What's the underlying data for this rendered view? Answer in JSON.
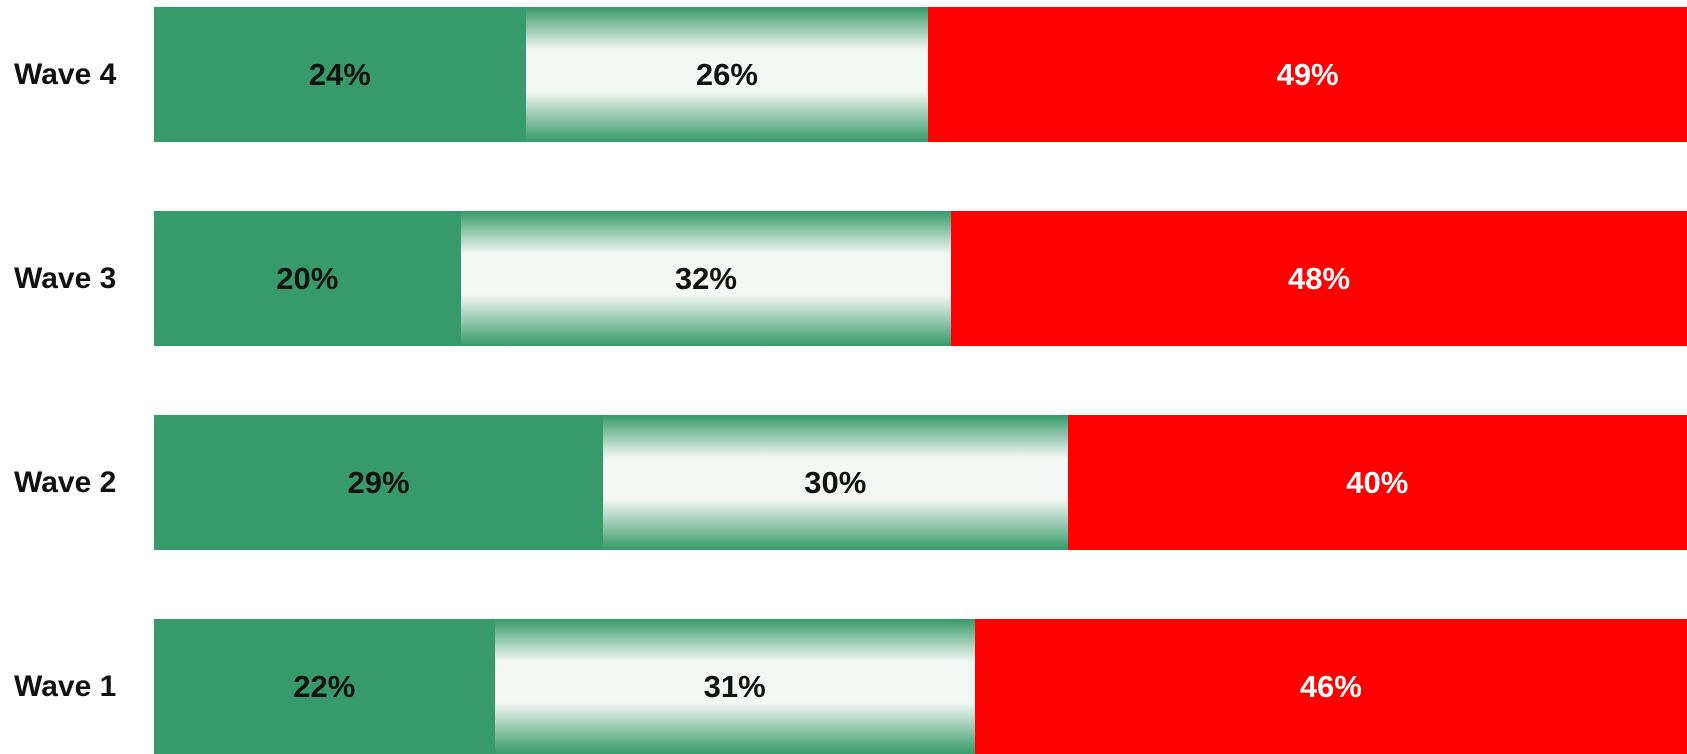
{
  "chart_data": {
    "type": "bar",
    "orientation": "horizontal",
    "stacked": true,
    "categories": [
      "Wave 4",
      "Wave 3",
      "Wave 2",
      "Wave 1"
    ],
    "series": [
      {
        "values": [
          24,
          20,
          29,
          22
        ],
        "labels": [
          "24%",
          "20%",
          "29%",
          "22%"
        ],
        "color": "#379a6a"
      },
      {
        "values": [
          26,
          32,
          30,
          31
        ],
        "labels": [
          "26%",
          "32%",
          "30%",
          "31%"
        ],
        "color": "#f4f8f5"
      },
      {
        "values": [
          49,
          48,
          40,
          46
        ],
        "labels": [
          "49%",
          "48%",
          "40%",
          "46%"
        ],
        "color": "#ff0000"
      }
    ],
    "title": "",
    "xlabel": "",
    "ylabel": "",
    "grid": false,
    "legend": "none"
  }
}
